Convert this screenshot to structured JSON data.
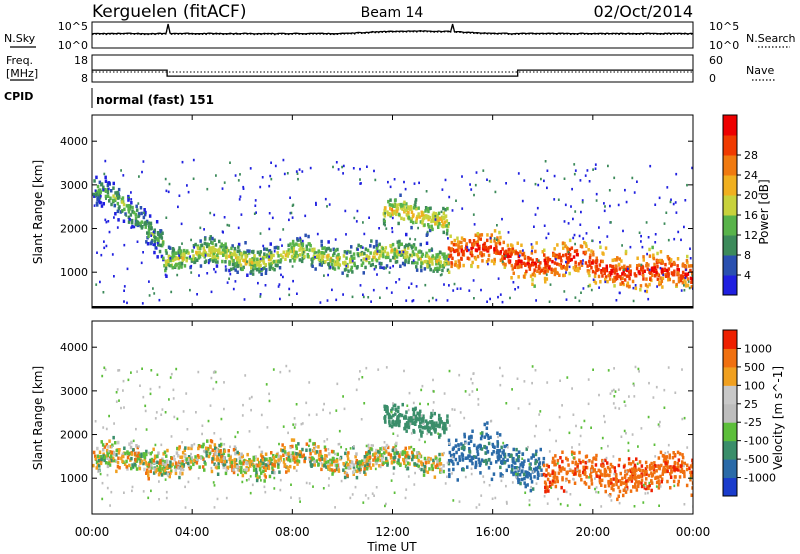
{
  "header": {
    "station": "Kerguelen (fitACF)",
    "beam": "Beam 14",
    "date": "02/Oct/2014"
  },
  "side_labels": {
    "nsky": "N.Sky",
    "nsearch": "N.Search",
    "freq_line1": "Freq.",
    "freq_line2": "[MHz]",
    "nave": "Nave",
    "cpid": "CPID",
    "cpid_value": "normal (fast) 151"
  },
  "noise_panel": {
    "left_ticks": [
      "10^5",
      "10^0"
    ],
    "right_ticks": [
      "10^5",
      "10^0"
    ]
  },
  "freq_panel": {
    "left_ticks": [
      "18",
      "8"
    ],
    "right_ticks": [
      "60",
      "0"
    ],
    "freq_mhz": [
      {
        "from": "00:00",
        "to": "03:00",
        "value": 12.4
      },
      {
        "from": "03:00",
        "to": "17:00",
        "value": 10.2
      },
      {
        "from": "17:00",
        "to": "24:00",
        "value": 12.4
      }
    ]
  },
  "colors": {
    "power": [
      "#2020e0",
      "#2a50b0",
      "#3c8a5a",
      "#58b34a",
      "#c8d23c",
      "#f0b020",
      "#f07a10",
      "#f03a00",
      "#ee0000"
    ],
    "velocity": [
      "#1a3ccc",
      "#2a6aa8",
      "#3a8e6a",
      "#5cbe3a",
      "#bdbdbd",
      "#c8c8c8",
      "#f0a020",
      "#f07010",
      "#ee2000"
    ]
  },
  "chart_data": [
    {
      "type": "heatmap",
      "name": "power",
      "xlabel": "",
      "ylabel": "Slant Range [km]",
      "x_range": [
        "00:00",
        "24:00"
      ],
      "ylim": [
        180,
        4600
      ],
      "y_ticks": [
        1000,
        2000,
        3000,
        4000
      ],
      "colorbar_label": "Power [dB]",
      "colorbar_ticks": [
        4,
        8,
        12,
        16,
        20,
        24,
        28
      ],
      "colorbar_range": [
        0,
        30
      ],
      "features": [
        {
          "from_h": 0.0,
          "to_h": 2.8,
          "range_km_start": 2900,
          "range_km_end": 1800,
          "width_km": 350,
          "level": 12
        },
        {
          "from_h": 2.8,
          "to_h": 14.2,
          "range_km": 1350,
          "width_km": 300,
          "level": 16
        },
        {
          "from_h": 11.6,
          "to_h": 14.2,
          "range_km": 2300,
          "width_km": 300,
          "level": 18
        },
        {
          "from_h": 14.2,
          "to_h": 24.0,
          "range_km_start": 1500,
          "range_km_end": 900,
          "width_km": 400,
          "level": 27
        }
      ]
    },
    {
      "type": "heatmap",
      "name": "velocity",
      "xlabel": "Time UT",
      "ylabel": "Slant Range [km]",
      "x_ticks": [
        "00:00",
        "04:00",
        "08:00",
        "12:00",
        "16:00",
        "20:00",
        "00:00"
      ],
      "ylim": [
        180,
        4600
      ],
      "y_ticks": [
        1000,
        2000,
        3000,
        4000
      ],
      "colorbar_label": "Velocity [m s^-1]",
      "colorbar_ticks": [
        "1000",
        "500",
        "100",
        "25",
        "-25",
        "-100",
        "-500",
        "-1000"
      ],
      "features": [
        {
          "from_h": 0.0,
          "to_h": 14.0,
          "range_km": 1400,
          "width_km": 300,
          "velocity": 0
        },
        {
          "from_h": 11.6,
          "to_h": 14.2,
          "range_km": 2300,
          "width_km": 300,
          "velocity": 300
        },
        {
          "from_h": 14.2,
          "to_h": 18.0,
          "range_km_start": 1600,
          "range_km_end": 1300,
          "width_km": 500,
          "velocity": 600
        },
        {
          "from_h": 18.0,
          "to_h": 24.0,
          "range_km": 1100,
          "width_km": 400,
          "velocity": -400
        }
      ]
    }
  ]
}
